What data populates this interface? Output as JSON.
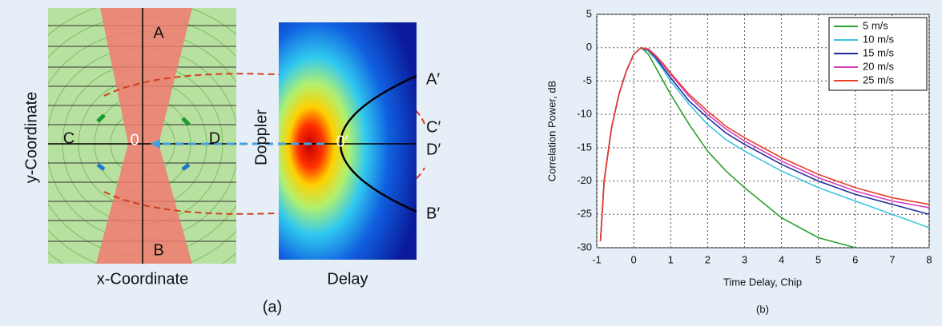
{
  "diagram": {
    "labels": {
      "a": "A",
      "b": "B",
      "c": "C",
      "d": "D",
      "o": "0",
      "y_axis": "y-Coordinate",
      "x_axis": "x-Coordinate",
      "doppler": "Doppler",
      "delay": "Delay",
      "a_prime": "A′",
      "b_prime": "B′",
      "c_prime": "C′",
      "d_prime": "D′",
      "o_prime": "0′"
    },
    "caption": "(a)"
  },
  "chart_data": {
    "type": "line",
    "caption": "(b)",
    "x_label": "Time Delay, Chip",
    "y_label": "Correlation Power, dB",
    "x": [
      -0.9,
      -0.8,
      -0.6,
      -0.4,
      -0.2,
      0,
      0.2,
      0.4,
      0.6,
      0.8,
      1,
      1.5,
      2,
      2.5,
      3,
      4,
      5,
      6,
      7,
      8
    ],
    "series": [
      {
        "name": "5 m/s",
        "color": "#2ca02c",
        "values": [
          -29,
          -20,
          -12,
          -7,
          -3.5,
          -1,
          0,
          -1,
          -3,
          -5,
          -7,
          -11.5,
          -15.5,
          -18.5,
          -21,
          -25.5,
          -28.5,
          -30,
          null,
          null
        ]
      },
      {
        "name": "10 m/s",
        "color": "#3fc4e0",
        "values": [
          -29,
          -20,
          -12,
          -7,
          -3.5,
          -1,
          0,
          -0.5,
          -1.8,
          -3.3,
          -5,
          -8.5,
          -11.5,
          -13.8,
          -15.5,
          -18.5,
          -21,
          -23,
          -25,
          -27
        ]
      },
      {
        "name": "15 m/s",
        "color": "#1f2f9a",
        "values": [
          -29,
          -20,
          -12,
          -7,
          -3.5,
          -1,
          0,
          -0.4,
          -1.5,
          -3,
          -4.5,
          -8,
          -10.5,
          -12.8,
          -14.5,
          -17.5,
          -20,
          -22,
          -23.5,
          -25
        ]
      },
      {
        "name": "20 m/s",
        "color": "#d040c0",
        "values": [
          -29,
          -20,
          -12,
          -7,
          -3.5,
          -1,
          0,
          -0.3,
          -1.3,
          -2.6,
          -4,
          -7.3,
          -10,
          -12.2,
          -14,
          -17,
          -19.5,
          -21.5,
          -23,
          -24
        ]
      },
      {
        "name": "25 m/s",
        "color": "#e8402a",
        "values": [
          -29,
          -20,
          -12,
          -7,
          -3.5,
          -1,
          0,
          -0.2,
          -1.2,
          -2.4,
          -3.8,
          -7,
          -9.5,
          -11.8,
          -13.5,
          -16.5,
          -19,
          -21,
          -22.5,
          -23.5
        ]
      }
    ],
    "xlim": [
      -1,
      8
    ],
    "xticks": [
      -1,
      0,
      1,
      2,
      3,
      4,
      5,
      6,
      7,
      8
    ],
    "ylim": [
      -30,
      5
    ],
    "yticks": [
      -30,
      -25,
      -20,
      -15,
      -10,
      -5,
      0,
      5
    ],
    "grid": true,
    "legend": "top-right"
  }
}
